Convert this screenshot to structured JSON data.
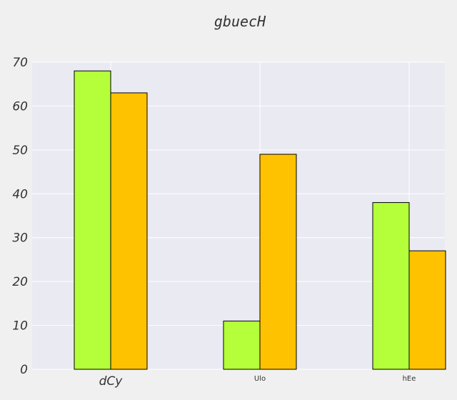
{
  "chart_data": {
    "type": "bar",
    "title": "gbuecH",
    "xlabel": "",
    "ylabel": "",
    "categories": [
      "dCy",
      "Ulo",
      "hEe"
    ],
    "series": [
      {
        "values": [
          68,
          11,
          38
        ],
        "color": "#b5ff3a"
      },
      {
        "values": [
          63,
          49,
          27
        ],
        "color": "#ffc200"
      }
    ],
    "ylim": [
      0,
      70
    ],
    "yticks": [
      "0",
      "10",
      "20",
      "30",
      "40",
      "50",
      "60",
      "70"
    ],
    "grid": true,
    "legend": "none",
    "plot_background": "#eaeaf2",
    "grid_color": "#ffffff",
    "bar_edge_color": "#000000"
  }
}
